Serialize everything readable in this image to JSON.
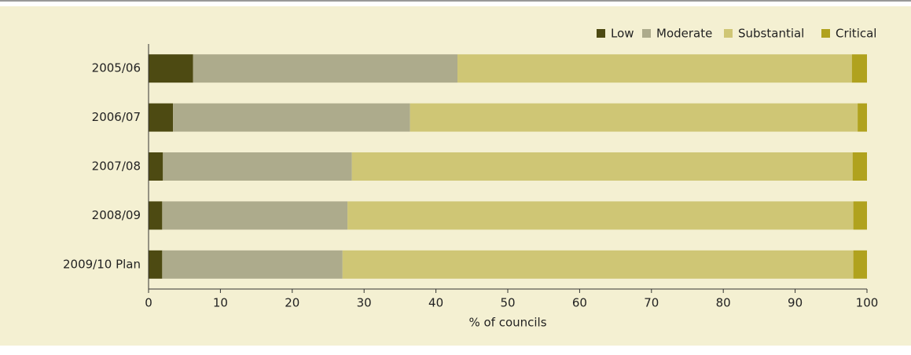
{
  "chart_data": {
    "type": "stacked-bar-horizontal",
    "categories": [
      "2005/06",
      "2006/07",
      "2007/08",
      "2008/09",
      "2009/10 Plan"
    ],
    "series": [
      {
        "name": "Low",
        "color": "#4d4a12",
        "values": [
          6.2,
          3.4,
          2.0,
          1.9,
          1.9
        ]
      },
      {
        "name": "Moderate",
        "color": "#adab8c",
        "values": [
          36.8,
          33.0,
          26.3,
          25.8,
          25.1
        ]
      },
      {
        "name": "Substantial",
        "color": "#cfc675",
        "values": [
          54.9,
          62.3,
          69.7,
          70.4,
          71.1
        ]
      },
      {
        "name": "Critical",
        "color": "#b0a21e",
        "values": [
          2.1,
          1.3,
          2.0,
          1.9,
          1.9
        ]
      }
    ],
    "xlabel": "% of councils",
    "xlim": [
      0,
      100
    ],
    "xticks": [
      0,
      10,
      20,
      30,
      40,
      50,
      60,
      70,
      80,
      90,
      100
    ],
    "legend": "top-right"
  }
}
